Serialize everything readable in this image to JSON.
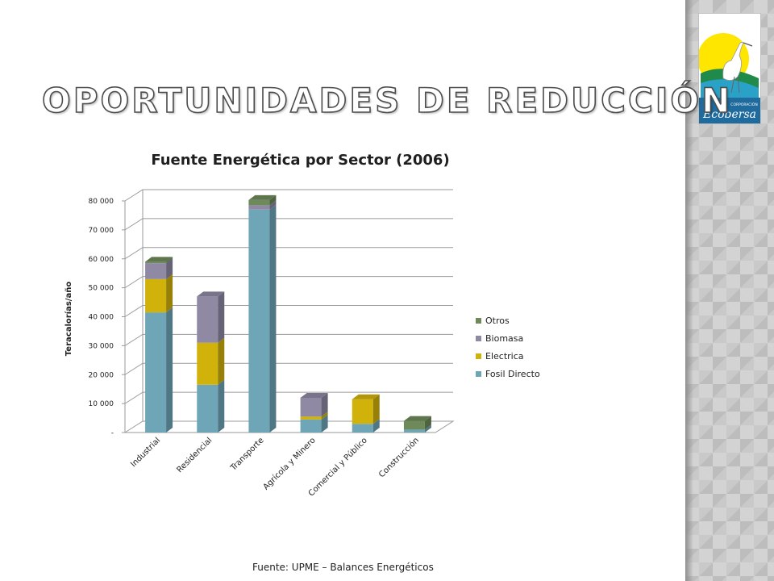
{
  "slide": {
    "title": "OPORTUNIDADES DE REDUCCIÓN",
    "source": "Fuente: UPME – Balances Energéticos"
  },
  "logo": {
    "text_top": "CORPORACIÓN",
    "text_main": "Ecobersa"
  },
  "colors": {
    "fosil": "#6fa6b7",
    "electrica": "#d0b20a",
    "biomasa": "#8f89a4",
    "otros": "#6e8a5a",
    "panel": "#c9c9c9",
    "logo_blue": "#1f6b9e",
    "logo_green": "#1f8a4a",
    "logo_yellow": "#ffe600"
  },
  "chart_data": {
    "type": "bar",
    "stacked": true,
    "three_d": true,
    "title": "Fuente Energética por Sector (2006)",
    "ylabel": "Teracalorías/año",
    "xlabel": "",
    "ylim": [
      0,
      80000
    ],
    "yticks": [
      {
        "value": 0,
        "label": "-"
      },
      {
        "value": 10000,
        "label": "10 000"
      },
      {
        "value": 20000,
        "label": "20 000"
      },
      {
        "value": 30000,
        "label": "30 000"
      },
      {
        "value": 40000,
        "label": "40 000"
      },
      {
        "value": 50000,
        "label": "50 000"
      },
      {
        "value": 60000,
        "label": "60 000"
      },
      {
        "value": 70000,
        "label": "70 000"
      },
      {
        "value": 80000,
        "label": "80 000"
      }
    ],
    "grid": true,
    "legend_position": "right",
    "categories": [
      "Industrial",
      "Residencial",
      "Transporte",
      "Agrícola y Minero",
      "Comercial y Público",
      "Construcción"
    ],
    "series": [
      {
        "name": "Fosil Directo",
        "color": "#6fa6b7",
        "values": [
          41500,
          16500,
          77000,
          4500,
          3000,
          1000
        ]
      },
      {
        "name": "Electrica",
        "color": "#d0b20a",
        "values": [
          11500,
          14500,
          0,
          1000,
          8500,
          0
        ]
      },
      {
        "name": "Biomasa",
        "color": "#8f89a4",
        "values": [
          5500,
          16000,
          1500,
          6500,
          0,
          0
        ]
      },
      {
        "name": "Otros",
        "color": "#6e8a5a",
        "values": [
          500,
          0,
          1800,
          0,
          0,
          3000
        ]
      }
    ]
  }
}
